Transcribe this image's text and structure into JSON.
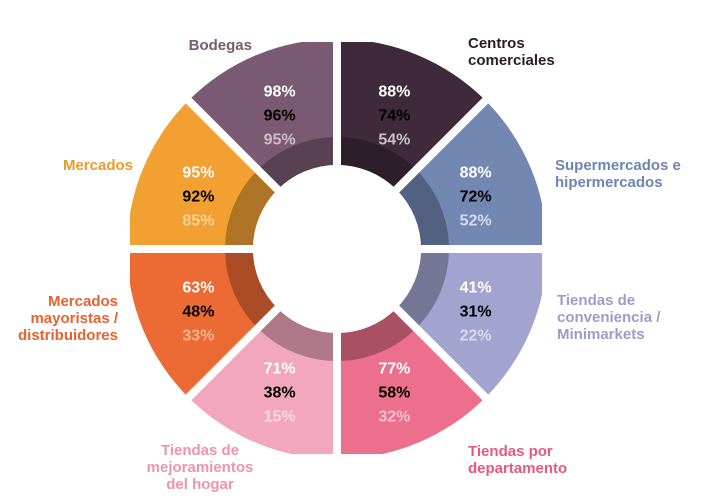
{
  "chart_data": {
    "type": "pie",
    "variant": "donut",
    "segments": [
      {
        "label": [
          "Centros",
          "comerciales"
        ],
        "values": [
          "88%",
          "74%",
          "54%"
        ],
        "color": "#3f2a3c",
        "label_color": "#2b1b29",
        "pct_colors": [
          "#ffffff",
          "#000000",
          "#c9bfc7"
        ]
      },
      {
        "label": [
          "Supermercados e",
          "hipermercados"
        ],
        "values": [
          "88%",
          "72%",
          "52%"
        ],
        "color": "#7387b3",
        "label_color": "#6f84b2",
        "pct_colors": [
          "#ffffff",
          "#000000",
          "#d3dbec"
        ]
      },
      {
        "label": [
          "Tiendas de",
          "conveniencia /",
          "Minimarkets"
        ],
        "values": [
          "41%",
          "31%",
          "22%"
        ],
        "color": "#a3a3cf",
        "label_color": "#9c9cc9",
        "pct_colors": [
          "#ffffff",
          "#000000",
          "#d8d8ee"
        ]
      },
      {
        "label": [
          "Tiendas por",
          "departamento"
        ],
        "values": [
          "77%",
          "58%",
          "32%"
        ],
        "color": "#ec6f8d",
        "label_color": "#e8587d",
        "pct_colors": [
          "#ffffff",
          "#000000",
          "#f7c0ce"
        ]
      },
      {
        "label": [
          "Tiendas de",
          "mejoramientos",
          "del hogar"
        ],
        "values": [
          "71%",
          "38%",
          "15%"
        ],
        "color": "#f3a7bd",
        "label_color": "#ef93ad",
        "pct_colors": [
          "#ffffff",
          "#000000",
          "#fbd9e3"
        ]
      },
      {
        "label": [
          "Mercados",
          "mayoristas /",
          "distribuidores"
        ],
        "values": [
          "63%",
          "48%",
          "33%"
        ],
        "color": "#ec6a34",
        "label_color": "#e8622c",
        "pct_colors": [
          "#ffffff",
          "#000000",
          "#f6b48f"
        ]
      },
      {
        "label": [
          "Mercados"
        ],
        "values": [
          "95%",
          "92%",
          "85%"
        ],
        "color": "#f2a032",
        "label_color": "#ee9a2a",
        "pct_colors": [
          "#ffffff",
          "#000000",
          "#f9d29b"
        ]
      },
      {
        "label": [
          "Bodegas"
        ],
        "values": [
          "98%",
          "96%",
          "95%"
        ],
        "color": "#7a5a72",
        "label_color": "#7a5a72",
        "pct_colors": [
          "#ffffff",
          "#000000",
          "#cdbcc8"
        ]
      }
    ]
  }
}
